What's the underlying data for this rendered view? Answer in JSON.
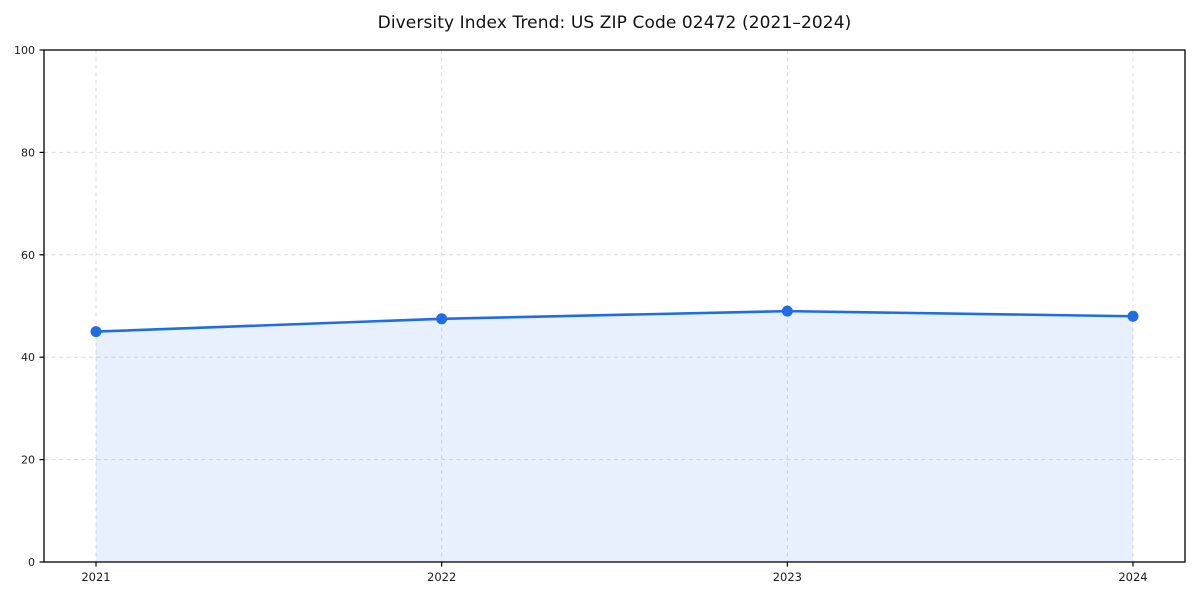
{
  "figure": {
    "background": "#ffffff"
  },
  "chart_data": {
    "type": "area",
    "title": "Diversity Index Trend: US ZIP Code 02472 (2021–2024)",
    "series_name": "Diversity Index",
    "categories": [
      "2021",
      "2022",
      "2023",
      "2024"
    ],
    "values": [
      45,
      47.5,
      49,
      48
    ],
    "xlabel": "",
    "ylabel": "",
    "ylim": [
      0,
      100
    ],
    "yticks": [
      0,
      20,
      40,
      60,
      80,
      100
    ],
    "grid": true,
    "grid_style": "dashed",
    "legend_position": "none",
    "line_color": "#1f6ce8",
    "marker_color": "#1f6ce8",
    "fill_color": "#1f6ce8",
    "fill_opacity": 0.1,
    "grid_color": "#dcdcdc",
    "axis_color": "#000000",
    "tick_label_color": "#1a1a1a"
  }
}
